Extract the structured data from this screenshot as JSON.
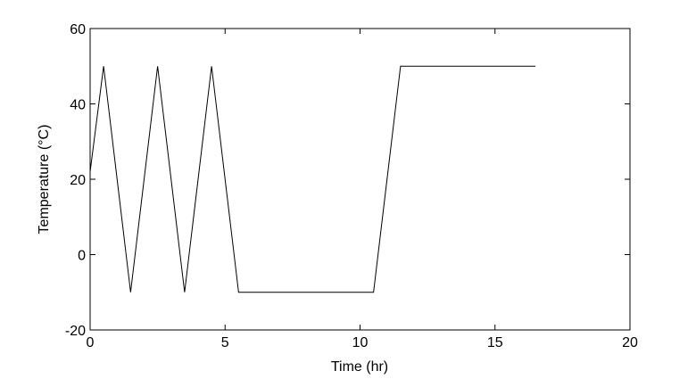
{
  "chart_data": {
    "type": "line",
    "x_label": "Time (hr)",
    "y_label": "Temperature (°C)",
    "x": [
      0,
      0.5,
      1.5,
      2.5,
      3.5,
      4.5,
      5.5,
      10.5,
      11.5,
      16.5
    ],
    "values": [
      22,
      50,
      -10,
      50,
      -10,
      50,
      -10,
      -10,
      50,
      50
    ],
    "color": "#000000",
    "xlim": [
      0,
      20
    ],
    "xticks": [
      0,
      5,
      10,
      15,
      20
    ],
    "ylim": [
      -20,
      60
    ],
    "yticks": [
      -20,
      0,
      20,
      40,
      60
    ],
    "grid": false
  }
}
